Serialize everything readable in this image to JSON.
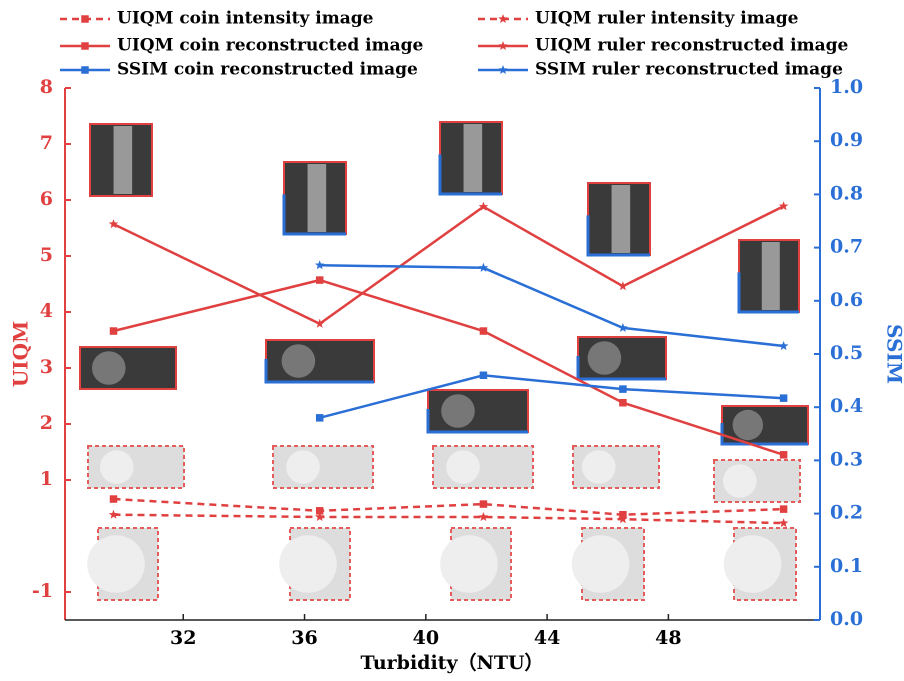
{
  "chart_data": {
    "type": "line",
    "xlabel": "Turbidity（NTU）",
    "ylabel": "UIQM",
    "y2label": "SSIM",
    "xlim": [
      28.1,
      53
    ],
    "xticks": [
      32,
      36,
      40,
      44,
      48
    ],
    "ylim": [
      -1.5,
      8
    ],
    "yticks": [
      -1,
      1,
      2,
      3,
      4,
      5,
      6,
      7,
      8
    ],
    "y2lim": [
      0,
      1
    ],
    "y2ticks": [
      {
        "value": 0,
        "label": "0.0"
      },
      0.1,
      0.2,
      0.3,
      0.4,
      0.5,
      0.6,
      0.7,
      0.8,
      0.9,
      {
        "value": 1,
        "label": "1.0"
      }
    ],
    "ycolor": "#e04040",
    "y2color": "#2a6fd6",
    "series": [
      {
        "name": "UIQM coin intensity image",
        "color": "#e04040",
        "dash": true,
        "marker": "square",
        "x": [
          29.7,
          36.5,
          41.9,
          46.5,
          51.8
        ],
        "values": [
          0.66,
          0.45,
          0.57,
          0.38,
          0.48
        ]
      },
      {
        "name": "UIQM ruler intensity image",
        "color": "#e04040",
        "dash": true,
        "marker": "star",
        "x": [
          29.7,
          36.5,
          41.9,
          46.5,
          51.8
        ],
        "values": [
          0.38,
          0.34,
          0.34,
          0.3,
          0.23
        ]
      },
      {
        "name": "UIQM coin reconstructed image",
        "color": "#e04040",
        "dash": false,
        "marker": "square",
        "x": [
          29.7,
          36.5,
          41.9,
          46.5,
          51.8
        ],
        "values": [
          3.66,
          4.57,
          3.66,
          2.38,
          1.45
        ]
      },
      {
        "name": "UIQM ruler reconstructed image",
        "color": "#e04040",
        "dash": false,
        "marker": "star",
        "x": [
          29.7,
          36.5,
          41.9,
          46.5,
          51.8
        ],
        "values": [
          5.57,
          3.79,
          5.88,
          4.46,
          5.89
        ]
      },
      {
        "name": "SSIM coin reconstructed image",
        "color": "#2a6fd6",
        "dash": false,
        "marker": "square",
        "axis": "y2",
        "x": [
          36.5,
          41.9,
          46.5,
          51.8
        ],
        "values": [
          0.38,
          0.46,
          0.434,
          0.417
        ]
      },
      {
        "name": "SSIM ruler reconstructed image",
        "color": "#2a6fd6",
        "dash": false,
        "marker": "star",
        "axis": "y2",
        "x": [
          36.5,
          41.9,
          46.5,
          51.8
        ],
        "values": [
          0.667,
          0.662,
          0.549,
          0.515
        ]
      }
    ]
  }
}
